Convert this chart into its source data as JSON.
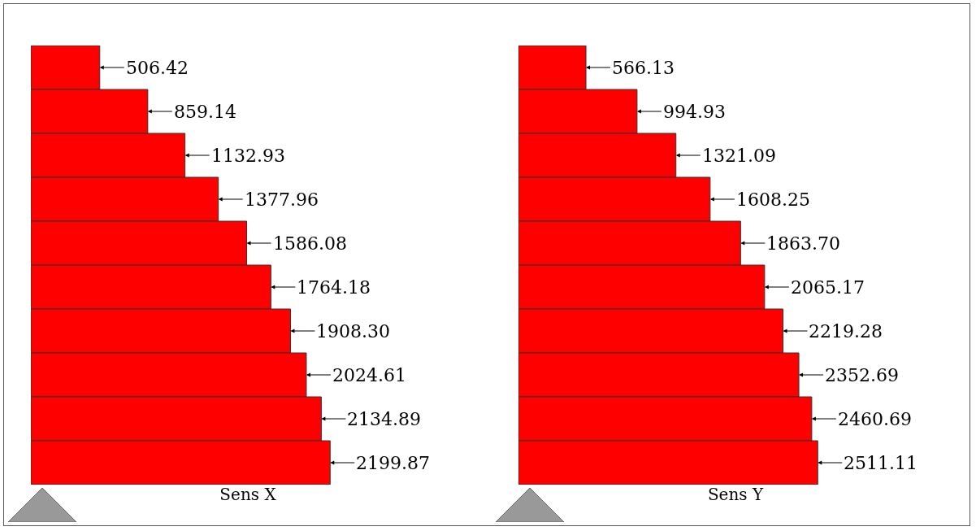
{
  "chart_data": [
    {
      "type": "bar",
      "orientation": "horizontal",
      "xlabel": "Sens X",
      "categories": [
        null,
        null,
        null,
        null,
        null,
        null,
        null,
        null,
        null,
        null
      ],
      "values": [
        506.42,
        859.14,
        1132.93,
        1377.96,
        1586.08,
        1764.18,
        1908.3,
        2024.61,
        2134.89,
        2199.87
      ],
      "value_labels": [
        "506.42",
        "859.14",
        "1132.93",
        "1377.96",
        "1586.08",
        "1764.18",
        "1908.30",
        "2024.61",
        "2134.89",
        "2199.87"
      ],
      "color": "#ff0000",
      "legend": false,
      "tick_labels": false
    },
    {
      "type": "bar",
      "orientation": "horizontal",
      "xlabel": "Sens Y",
      "categories": [
        null,
        null,
        null,
        null,
        null,
        null,
        null,
        null,
        null,
        null
      ],
      "values": [
        566.13,
        994.93,
        1321.09,
        1608.25,
        1863.7,
        2065.17,
        2219.28,
        2352.69,
        2460.69,
        2511.11
      ],
      "value_labels": [
        "566.13",
        "994.93",
        "1321.09",
        "1608.25",
        "1863.70",
        "2065.17",
        "2219.28",
        "2352.69",
        "2460.69",
        "2511.11"
      ],
      "color": "#ff0000",
      "legend": false,
      "tick_labels": false
    }
  ]
}
